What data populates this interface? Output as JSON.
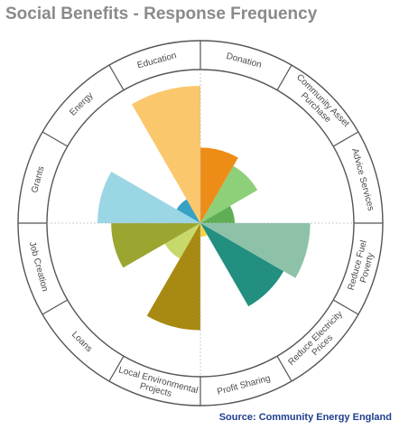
{
  "chart_title": "Social Benefits - Response Frequency",
  "source": "Source: Community Energy England",
  "chart_data": {
    "type": "polar-area",
    "title": "Social Benefits - Response Frequency",
    "rlim": [
      0,
      10
    ],
    "grid": true,
    "categories": [
      {
        "label": "Donation",
        "lines": [
          "Donation"
        ],
        "value": 5.5,
        "color": "#ee8c18"
      },
      {
        "label": "Community Asset Purchase",
        "lines": [
          "Community Asset",
          "Purchase"
        ],
        "value": 4.8,
        "color": "#8ecf7a"
      },
      {
        "label": "Advice Services",
        "lines": [
          "Advice Services"
        ],
        "value": 2.5,
        "color": "#5fae56"
      },
      {
        "label": "Reduce Fuel Poverty",
        "lines": [
          "Reduce Fuel",
          "Poverty"
        ],
        "value": 8.0,
        "color": "#8dc2a9"
      },
      {
        "label": "Reduce Electricity Prices",
        "lines": [
          "Reduce Electricity",
          "Prices"
        ],
        "value": 7.0,
        "color": "#228f80"
      },
      {
        "label": "Profit Sharing",
        "lines": [
          "Profit Sharing"
        ],
        "value": 1.0,
        "color": "#f5d44a"
      },
      {
        "label": "Local Environmental Projects",
        "lines": [
          "Local Environmental",
          "Projects"
        ],
        "value": 7.8,
        "color": "#a88a12"
      },
      {
        "label": "Loans",
        "lines": [
          "Loans"
        ],
        "value": 3.0,
        "color": "#c7d96a"
      },
      {
        "label": "Job Creation",
        "lines": [
          "Job Creation"
        ],
        "value": 6.5,
        "color": "#9aa630"
      },
      {
        "label": "Grants",
        "lines": [
          "Grants"
        ],
        "value": 7.5,
        "color": "#9bd6e4"
      },
      {
        "label": "Energy",
        "lines": [
          "Energy"
        ],
        "value": 2.0,
        "color": "#37a2c4"
      },
      {
        "label": "Education",
        "lines": [
          "Education"
        ],
        "value": 10.0,
        "color": "#fbc76c"
      }
    ]
  }
}
